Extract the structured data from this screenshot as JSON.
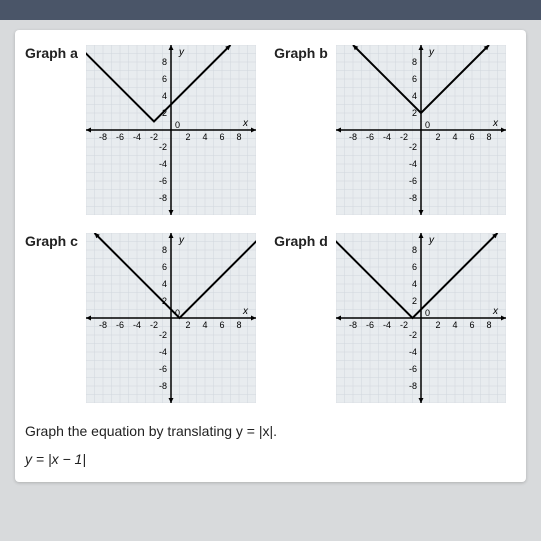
{
  "graphs": [
    {
      "label": "Graph a",
      "vertex": [
        -2,
        1
      ],
      "shape": "v_up"
    },
    {
      "label": "Graph b",
      "vertex": [
        0,
        2
      ],
      "shape": "v_up"
    },
    {
      "label": "Graph c",
      "vertex": [
        1,
        0
      ],
      "shape": "v_up"
    },
    {
      "label": "Graph d",
      "vertex": [
        -1,
        0
      ],
      "shape": "v_up"
    }
  ],
  "axis": {
    "xlim": [
      -10,
      10
    ],
    "ylim": [
      -10,
      10
    ],
    "xtick_labels_neg": [
      "-8",
      "-6",
      "-4",
      "-2"
    ],
    "xtick_labels_pos": [
      "2",
      "4",
      "6",
      "8"
    ],
    "ytick_labels_pos": [
      "8",
      "6",
      "4",
      "2"
    ],
    "ytick_labels_neg": [
      "-2",
      "-4",
      "-6",
      "-8"
    ],
    "tick_step": 2,
    "y_axis_label": "y",
    "x_axis_label": "x",
    "grid_color": "#d0d6dc",
    "bg_color": "#e8ecef",
    "axis_color": "#000000",
    "line_color": "#000000",
    "tick_fontsize": 9
  },
  "question": {
    "line1": "Graph the equation by translating y = |x|.",
    "line2": "y = |x − 1|"
  }
}
